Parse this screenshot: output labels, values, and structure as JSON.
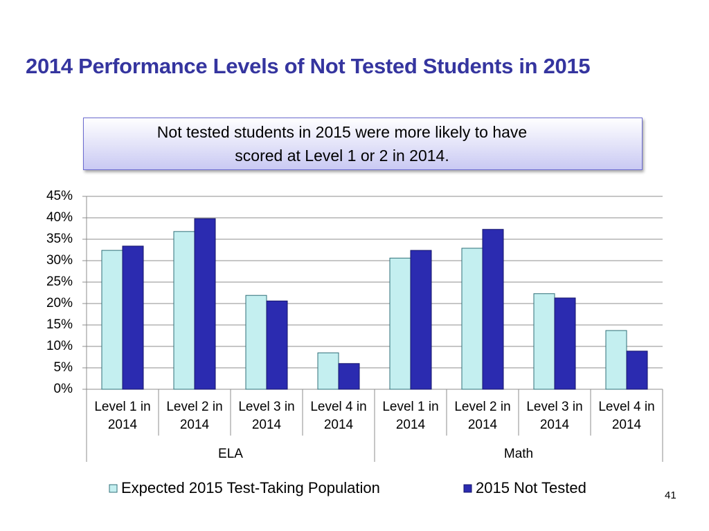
{
  "title": "2014 Performance Levels of Not Tested Students in 2015",
  "page_number": "41",
  "chart_data": {
    "type": "bar",
    "annotation": "Not tested students in 2015 were more likely to have scored at Level 1 or 2 in 2014.",
    "categories": [
      "Level 1 in 2014",
      "Level 2 in 2014",
      "Level 3 in 2014",
      "Level 4 in 2014",
      "Level 1 in 2014",
      "Level 2 in 2014",
      "Level 3 in 2014",
      "Level 4 in 2014"
    ],
    "groups": [
      "ELA",
      "Math"
    ],
    "series": [
      {
        "name": "Expected 2015 Test-Taking Population",
        "color": "#c4eff0",
        "values": [
          32.4,
          36.8,
          21.9,
          8.5,
          30.6,
          32.9,
          22.3,
          13.7
        ]
      },
      {
        "name": "2015 Not Tested",
        "color": "#2b2bb0",
        "values": [
          33.4,
          39.8,
          20.6,
          6.0,
          32.4,
          37.3,
          21.3,
          8.9
        ]
      }
    ],
    "ylim": [
      0,
      45
    ],
    "yticks": [
      {
        "value": 0,
        "label": "0%"
      },
      {
        "value": 5,
        "label": "5%"
      },
      {
        "value": 10,
        "label": "10%"
      },
      {
        "value": 15,
        "label": "15%"
      },
      {
        "value": 20,
        "label": "20%"
      },
      {
        "value": 25,
        "label": "25%"
      },
      {
        "value": 30,
        "label": "30%"
      },
      {
        "value": 35,
        "label": "35%"
      },
      {
        "value": 40,
        "label": "40%"
      },
      {
        "value": 45,
        "label": "45%"
      }
    ],
    "grid": true,
    "legend": "bottom"
  }
}
